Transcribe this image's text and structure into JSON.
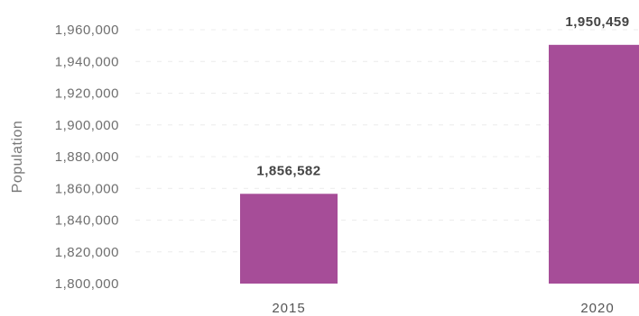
{
  "chart_data": {
    "type": "bar",
    "categories": [
      "2015",
      "2020"
    ],
    "values": [
      1856582,
      1950459
    ],
    "data_labels": [
      "1,856,582",
      "1,950,459"
    ],
    "ylabel": "Population",
    "ylim": [
      1800000,
      1960000
    ],
    "yticks": [
      1800000,
      1820000,
      1840000,
      1860000,
      1880000,
      1900000,
      1920000,
      1940000,
      1960000
    ],
    "ytick_labels": [
      "1,800,000",
      "1,820,000",
      "1,840,000",
      "1,860,000",
      "1,880,000",
      "1,900,000",
      "1,920,000",
      "1,940,000",
      "1,960,000"
    ],
    "bar_color": "#a64d98",
    "grid": true,
    "legend": "none"
  }
}
